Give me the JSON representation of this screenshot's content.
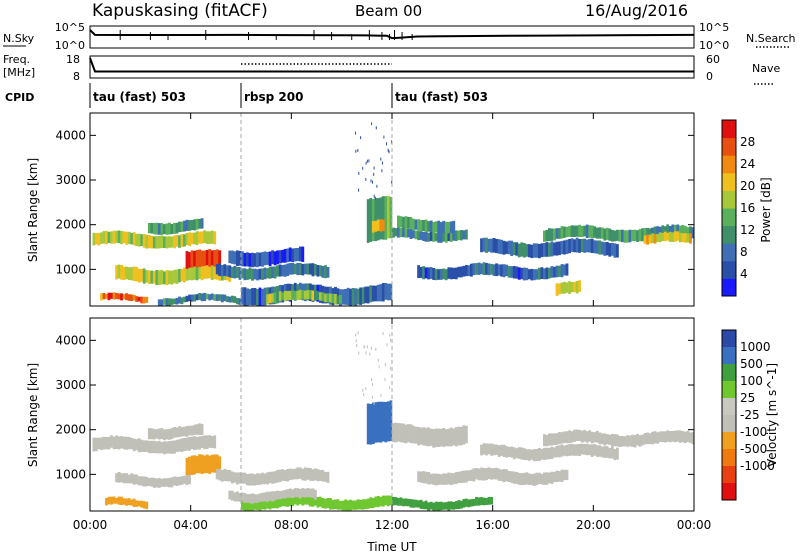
{
  "header": {
    "station": "Kapuskasing (fitACF)",
    "beam": "Beam 00",
    "date": "16/Aug/2016"
  },
  "strip_labels": {
    "nsky": "N.Sky",
    "nsearch": "N.Search",
    "freq": "Freq.",
    "freq_unit": "[MHz]",
    "nave": "Nave",
    "cpid": "CPID"
  },
  "strip_ticks": {
    "nsky": [
      "10^5",
      "10^0"
    ],
    "nsearch": [
      "10^5",
      "10^0"
    ],
    "freq": [
      "18",
      "8"
    ],
    "nave": [
      "60",
      "0"
    ]
  },
  "colors": {
    "power_scale": [
      "#1a1aff",
      "#2a4fa8",
      "#3f6fb5",
      "#3f8f6a",
      "#5bb05b",
      "#a8c83a",
      "#f0c020",
      "#f08a10",
      "#e85010",
      "#e01010"
    ],
    "velocity_scale": [
      "#2b4aa8",
      "#3a70c0",
      "#40a040",
      "#70c830",
      "#c8c8c0",
      "#c0c0b8",
      "#f0a020",
      "#f07a10",
      "#e84010",
      "#e01010"
    ],
    "ground_scatter": "#c0c0b8"
  },
  "chart_data": [
    {
      "type": "line",
      "title": "N.Sky / N.Search",
      "x_range": [
        "00:00",
        "24:00"
      ],
      "series": [
        {
          "name": "N.Sky",
          "x": [
            0,
            0.2,
            2,
            4,
            6,
            8,
            10,
            11,
            11.8,
            12,
            12.3,
            13,
            14,
            16,
            18,
            20,
            22,
            23.9,
            24
          ],
          "y": [
            100000,
            3000,
            2800,
            2700,
            2900,
            2600,
            2300,
            2000,
            1500,
            300,
            400,
            900,
            1100,
            1400,
            1800,
            2100,
            2500,
            2900,
            2900
          ]
        }
      ]
    },
    {
      "type": "line",
      "title": "Freq. / Nave",
      "x_range": [
        "00:00",
        "24:00"
      ],
      "series": [
        {
          "name": "Freq.",
          "x": [
            0,
            0.2,
            2,
            4,
            6,
            8,
            10,
            12,
            14,
            16,
            18,
            20,
            22,
            23.9,
            24
          ],
          "y": [
            18,
            10.5,
            10.5,
            10.5,
            10.5,
            10.5,
            10.5,
            10.5,
            10.5,
            10.5,
            10.5,
            10.5,
            10.5,
            10.5,
            10.5
          ]
        },
        {
          "name": "Nave",
          "x": [
            6,
            12
          ],
          "y": [
            40,
            40
          ]
        }
      ]
    },
    {
      "type": "table",
      "title": "CPID",
      "segments": [
        {
          "label": "tau (fast) 503",
          "start": 0,
          "end": 6
        },
        {
          "label": "rbsp 200",
          "start": 6,
          "end": 12
        },
        {
          "label": "tau (fast) 503",
          "start": 12,
          "end": 24
        }
      ]
    },
    {
      "type": "heatmap",
      "ylabel": "Slant Range [km]",
      "colorbar_label": "Power [dB]",
      "x_ticks": [
        "00:00",
        "04:00",
        "08:00",
        "12:00",
        "16:00",
        "20:00",
        "00:00"
      ],
      "x_tick_values": [
        0,
        4,
        8,
        12,
        16,
        20,
        24
      ],
      "y_ticks": [
        "1000",
        "2000",
        "3000",
        "4000"
      ],
      "y_tick_values": [
        1000,
        2000,
        3000,
        4000
      ],
      "ylim": [
        180,
        4500
      ],
      "colorbar_ticks": [
        "4",
        "8",
        "12",
        "16",
        "20",
        "24",
        "28"
      ],
      "colorbar_tick_values": [
        4,
        8,
        12,
        16,
        20,
        24,
        28
      ],
      "colorbar_range": [
        0,
        32
      ],
      "markers_ut": [
        6,
        12
      ],
      "bands": [
        {
          "t0": 0.1,
          "t1": 5.0,
          "r0": 1500,
          "r1": 1820,
          "v": 18
        },
        {
          "t0": 2.3,
          "t1": 4.5,
          "r0": 1820,
          "r1": 2100,
          "v": 12
        },
        {
          "t0": 1.0,
          "t1": 5.6,
          "r0": 700,
          "r1": 1050,
          "v": 18
        },
        {
          "t0": 3.8,
          "t1": 5.2,
          "r0": 1000,
          "r1": 1400,
          "v": 30
        },
        {
          "t0": 0.4,
          "t1": 2.3,
          "r0": 250,
          "r1": 430,
          "v": 26
        },
        {
          "t0": 2.7,
          "t1": 6.2,
          "r0": 230,
          "r1": 420,
          "v": 10
        },
        {
          "t0": 5.0,
          "t1": 9.5,
          "r0": 800,
          "r1": 1100,
          "v": 8
        },
        {
          "t0": 5.5,
          "t1": 8.5,
          "r0": 1100,
          "r1": 1450,
          "v": 6
        },
        {
          "t0": 6.0,
          "t1": 12.0,
          "r0": 230,
          "r1": 650,
          "v": 7
        },
        {
          "t0": 7.0,
          "t1": 10.0,
          "r0": 250,
          "r1": 500,
          "v": 16
        },
        {
          "t0": 11.0,
          "t1": 12.0,
          "r0": 1600,
          "r1": 2600,
          "v": 14
        },
        {
          "t0": 11.2,
          "t1": 11.7,
          "r0": 1800,
          "r1": 2100,
          "v": 22
        },
        {
          "t0": 12.0,
          "t1": 15.0,
          "r0": 1650,
          "r1": 1900,
          "v": 10
        },
        {
          "t0": 12.2,
          "t1": 14.5,
          "r0": 1850,
          "r1": 2150,
          "v": 12
        },
        {
          "t0": 15.5,
          "t1": 21.0,
          "r0": 1300,
          "r1": 1650,
          "v": 7
        },
        {
          "t0": 18.0,
          "t1": 24.0,
          "r0": 1650,
          "r1": 1950,
          "v": 12
        },
        {
          "t0": 22.0,
          "t1": 23.9,
          "r0": 1550,
          "r1": 1800,
          "v": 20
        },
        {
          "t0": 13.0,
          "t1": 19.0,
          "r0": 800,
          "r1": 1100,
          "v": 7
        },
        {
          "t0": 18.5,
          "t1": 19.5,
          "r0": 400,
          "r1": 700,
          "v": 18
        }
      ]
    },
    {
      "type": "heatmap",
      "ylabel": "Slant Range [km]",
      "colorbar_label": "Velocity [m s^-1]",
      "xlabel": "Time UT",
      "x_ticks": [
        "00:00",
        "04:00",
        "08:00",
        "12:00",
        "16:00",
        "20:00",
        "00:00"
      ],
      "x_tick_values": [
        0,
        4,
        8,
        12,
        16,
        20,
        24
      ],
      "y_ticks": [
        "1000",
        "2000",
        "3000",
        "4000"
      ],
      "y_tick_values": [
        1000,
        2000,
        3000,
        4000
      ],
      "ylim": [
        180,
        4500
      ],
      "colorbar_ticks": [
        "1000",
        "500",
        "100",
        "25",
        "-25",
        "-100",
        "-500",
        "-1000"
      ],
      "markers_ut": [
        6,
        12
      ],
      "bands": [
        {
          "t0": 0.1,
          "t1": 5.0,
          "r0": 1500,
          "r1": 1820,
          "v": "gs"
        },
        {
          "t0": 2.3,
          "t1": 4.5,
          "r0": 1820,
          "r1": 2100,
          "v": "gs"
        },
        {
          "t0": 1.0,
          "t1": 4.0,
          "r0": 750,
          "r1": 1000,
          "v": "gs"
        },
        {
          "t0": 3.8,
          "t1": 5.2,
          "r0": 950,
          "r1": 1400,
          "v": -200
        },
        {
          "t0": 0.6,
          "t1": 2.3,
          "r0": 250,
          "r1": 450,
          "v": -200
        },
        {
          "t0": 5.0,
          "t1": 9.5,
          "r0": 800,
          "r1": 1100,
          "v": "gs"
        },
        {
          "t0": 6.0,
          "t1": 12.0,
          "r0": 230,
          "r1": 500,
          "v": 80
        },
        {
          "t0": 5.5,
          "t1": 9.0,
          "r0": 400,
          "r1": 650,
          "v": -40
        },
        {
          "t0": 11.0,
          "t1": 12.0,
          "r0": 1650,
          "r1": 2600,
          "v": 700
        },
        {
          "t0": 12.0,
          "t1": 15.0,
          "r0": 1650,
          "r1": 2100,
          "v": "gs"
        },
        {
          "t0": 15.5,
          "t1": 21.0,
          "r0": 1350,
          "r1": 1650,
          "v": "gs"
        },
        {
          "t0": 18.0,
          "t1": 24.0,
          "r0": 1650,
          "r1": 1950,
          "v": "gs"
        },
        {
          "t0": 13.0,
          "t1": 19.0,
          "r0": 800,
          "r1": 1100,
          "v": "gs"
        },
        {
          "t0": 12.0,
          "t1": 16.0,
          "r0": 230,
          "r1": 450,
          "v": 150
        }
      ]
    }
  ]
}
